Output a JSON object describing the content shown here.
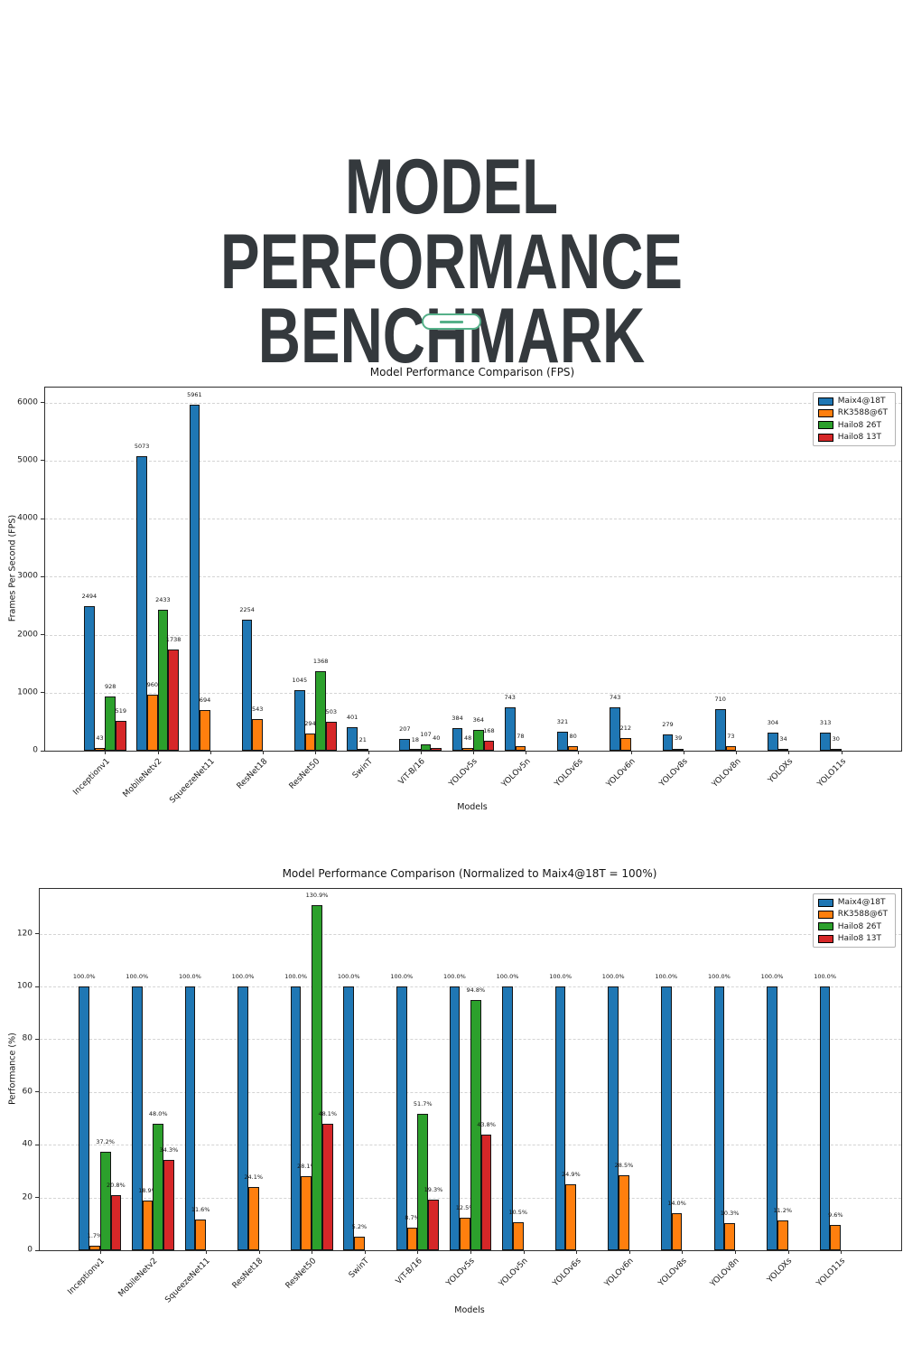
{
  "header": {
    "title_line1": "MODEL PERFORMANCE",
    "title_line2": "BENCHMARK",
    "title_color": "#34393D",
    "accent_color": "#55B089"
  },
  "chart_data": [
    {
      "type": "bar",
      "title": "Model Performance Comparison (FPS)",
      "xlabel": "Models",
      "ylabel": "Frames Per Second (FPS)",
      "categories": [
        "Inceptionv1",
        "MobileNetv2",
        "SqueezeNet11",
        "ResNet18",
        "ResNet50",
        "SwinT",
        "ViT-B/16",
        "YOLOv5s",
        "YOLOv5n",
        "YOLOv6s",
        "YOLOv6n",
        "YOLOv8s",
        "YOLOv8n",
        "YOLOXs",
        "YOLO11s"
      ],
      "series": [
        {
          "name": "Maix4@18T",
          "color": "#1f77b4",
          "values": [
            2494,
            5073,
            5961,
            2254,
            1045,
            401,
            207,
            384,
            743,
            321,
            743,
            279,
            710,
            304,
            313
          ]
        },
        {
          "name": "RK3588@6T",
          "color": "#ff7f0e",
          "values": [
            43,
            960,
            694,
            543,
            294,
            21,
            18,
            48,
            78,
            80,
            212,
            39,
            73,
            34,
            30
          ]
        },
        {
          "name": "Hailo8 26T",
          "color": "#2ca02c",
          "values": [
            928,
            2433,
            null,
            null,
            1368,
            null,
            107,
            364,
            null,
            null,
            null,
            null,
            null,
            null,
            null
          ]
        },
        {
          "name": "Hailo8 13T",
          "color": "#d62728",
          "values": [
            519,
            1738,
            null,
            null,
            503,
            null,
            40,
            168,
            null,
            null,
            null,
            null,
            null,
            null,
            null
          ]
        }
      ],
      "yticks": [
        0,
        1000,
        2000,
        3000,
        4000,
        5000,
        6000
      ],
      "ylim": [
        0,
        6259
      ],
      "grid": "horizontal-dashed",
      "legend_position": "top-right",
      "value_label_format": "int"
    },
    {
      "type": "bar",
      "title": "Model Performance Comparison (Normalized to Maix4@18T = 100%)",
      "xlabel": "Models",
      "ylabel": "Performance (%)",
      "categories": [
        "Inceptionv1",
        "MobileNetv2",
        "SqueezeNet11",
        "ResNet18",
        "ResNet50",
        "SwinT",
        "ViT-B/16",
        "YOLOv5s",
        "YOLOv5n",
        "YOLOv6s",
        "YOLOv6n",
        "YOLOv8s",
        "YOLOv8n",
        "YOLOXs",
        "YOLO11s"
      ],
      "series": [
        {
          "name": "Maix4@18T",
          "color": "#1f77b4",
          "values": [
            100.0,
            100.0,
            100.0,
            100.0,
            100.0,
            100.0,
            100.0,
            100.0,
            100.0,
            100.0,
            100.0,
            100.0,
            100.0,
            100.0,
            100.0
          ]
        },
        {
          "name": "RK3588@6T",
          "color": "#ff7f0e",
          "values": [
            1.7,
            18.9,
            11.6,
            24.1,
            28.1,
            5.2,
            8.7,
            12.5,
            10.5,
            24.9,
            28.5,
            14.0,
            10.3,
            11.2,
            9.6
          ]
        },
        {
          "name": "Hailo8 26T",
          "color": "#2ca02c",
          "values": [
            37.2,
            48.0,
            null,
            null,
            130.9,
            null,
            51.7,
            94.8,
            null,
            null,
            null,
            null,
            null,
            null,
            null
          ]
        },
        {
          "name": "Hailo8 13T",
          "color": "#d62728",
          "values": [
            20.8,
            34.3,
            null,
            null,
            48.1,
            null,
            19.3,
            43.8,
            null,
            null,
            null,
            null,
            null,
            null,
            null
          ]
        }
      ],
      "yticks": [
        0,
        20,
        40,
        60,
        80,
        100,
        120
      ],
      "ylim": [
        0,
        137
      ],
      "grid": "horizontal-dashed",
      "legend_position": "top-right",
      "value_label_format": "percent1"
    }
  ]
}
